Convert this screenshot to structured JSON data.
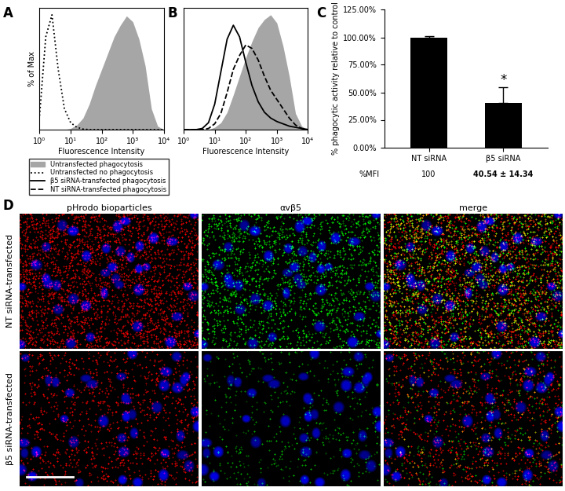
{
  "chart_data": [
    {
      "panel": "A",
      "type": "line",
      "xlabel": "Fluorescence Intensity",
      "ylabel": "% of Max",
      "log": "x",
      "tick_labels": "x",
      "legend": "upper left",
      "xlim": [
        1,
        10000
      ],
      "xticks": [
        {
          "value": 1,
          "label": "10⁰"
        },
        {
          "value": 10,
          "label": "10¹"
        },
        {
          "value": 100,
          "label": "10²"
        },
        {
          "value": 1000,
          "label": "10³"
        },
        {
          "value": 10000,
          "label": "10⁴"
        }
      ],
      "ylim": [
        0,
        105
      ],
      "yticks": [],
      "x": [
        1,
        1.585,
        2.512,
        3.981,
        6.31,
        10,
        15.85,
        25.12,
        39.81,
        63.1,
        100,
        158.5,
        251.2,
        398.1,
        631,
        1000,
        1585,
        2512,
        3981,
        6310,
        10000
      ],
      "series": [
        {
          "name": "Untransfected phagocytosis",
          "type": "area",
          "color": "#a6a6a6",
          "values": [
            0,
            0,
            0,
            0,
            0,
            1,
            4,
            10,
            22,
            38,
            52,
            66,
            80,
            90,
            98,
            93,
            78,
            55,
            18,
            3,
            0
          ]
        },
        {
          "name": "Untransfected no phagocytosis",
          "type": "line",
          "line_style": "dotted",
          "color": "#000000",
          "values": [
            12,
            80,
            99,
            52,
            18,
            6,
            2,
            0.5,
            0,
            0,
            0,
            0,
            0,
            0,
            0,
            0,
            0,
            0,
            0,
            0,
            0
          ]
        }
      ]
    },
    {
      "panel": "B",
      "type": "line",
      "xlabel": "Fluorescence Intensity",
      "log": "x",
      "tick_labels": "x",
      "xlim": [
        1,
        10000
      ],
      "xticks": [
        {
          "value": 1,
          "label": "10⁰"
        },
        {
          "value": 10,
          "label": "10¹"
        },
        {
          "value": 100,
          "label": "10²"
        },
        {
          "value": 1000,
          "label": "10³"
        },
        {
          "value": 10000,
          "label": "10⁴"
        }
      ],
      "ylim": [
        0,
        105
      ],
      "yticks": [],
      "x": [
        1,
        1.585,
        2.512,
        3.981,
        6.31,
        10,
        15.85,
        25.12,
        39.81,
        63.1,
        100,
        158.5,
        251.2,
        398.1,
        631,
        1000,
        1585,
        2512,
        3981,
        6310,
        10000
      ],
      "series": [
        {
          "name": "Untransfected phagocytosis",
          "type": "area",
          "color": "#a6a6a6",
          "values": [
            0,
            0,
            0,
            0,
            0,
            2,
            6,
            15,
            30,
            46,
            62,
            76,
            88,
            95,
            99,
            92,
            72,
            46,
            14,
            3,
            0
          ]
        },
        {
          "name": "β5 siRNA-transfected phagocytosis",
          "type": "line",
          "line_style": "solid",
          "color": "#000000",
          "values": [
            0,
            0,
            0,
            1,
            6,
            22,
            50,
            78,
            90,
            80,
            58,
            38,
            24,
            15,
            10,
            7,
            5,
            3,
            2,
            1,
            0
          ]
        },
        {
          "name": "NT siRNA-transfected phagocytosis",
          "type": "line",
          "line_style": "dashed",
          "color": "#000000",
          "values": [
            0,
            0,
            0,
            0,
            1,
            5,
            14,
            32,
            52,
            64,
            73,
            70,
            60,
            46,
            34,
            26,
            18,
            10,
            4,
            1,
            0
          ]
        }
      ]
    },
    {
      "panel": "C",
      "type": "bar",
      "ylabel": "% phagocytic activity relative to control",
      "categories": [
        "NT siRNA",
        "β5 siRNA"
      ],
      "values": [
        100,
        40.54
      ],
      "errors": [
        1,
        14.34
      ],
      "value_labels_title": "%MFI",
      "value_labels": [
        "100",
        "40.54 ± 14.34"
      ],
      "color": "#000000",
      "ylim": [
        0,
        125
      ],
      "yticks": [
        {
          "value": 0,
          "label": "0.00%"
        },
        {
          "value": 25,
          "label": "25.00%"
        },
        {
          "value": 50,
          "label": "50.00%"
        },
        {
          "value": 75,
          "label": "75.00%"
        },
        {
          "value": 100,
          "label": "100.00%"
        },
        {
          "value": 125,
          "label": "125.00%"
        }
      ],
      "annotations": [
        {
          "text": "*",
          "category": "β5 siRNA"
        }
      ]
    }
  ],
  "image_panels": {
    "panel": "D",
    "columns": [
      "pHrodo bioparticles",
      "αvβ5",
      "merge"
    ],
    "rows": [
      "NT siRNA-transfected",
      "β5 siRNA-transfected"
    ]
  }
}
